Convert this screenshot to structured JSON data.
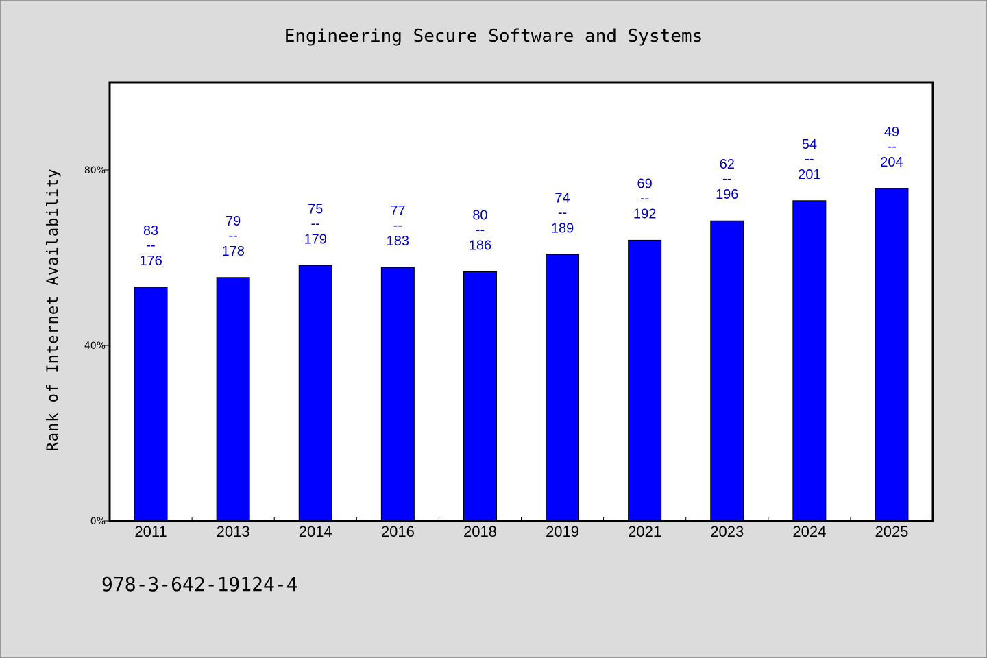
{
  "chart_data": {
    "type": "bar",
    "title": "Engineering Secure Software and Systems",
    "xlabel": "",
    "ylabel": "Rank of Internet Availability",
    "categories": [
      "2011",
      "2013",
      "2014",
      "2016",
      "2018",
      "2019",
      "2021",
      "2023",
      "2024",
      "2025"
    ],
    "values": [
      53.3,
      55.5,
      58.2,
      57.8,
      56.8,
      60.7,
      64.0,
      68.4,
      73.0,
      75.8
    ],
    "labels": [
      {
        "top": "83",
        "sep": "--",
        "bottom": "176"
      },
      {
        "top": "79",
        "sep": "--",
        "bottom": "178"
      },
      {
        "top": "75",
        "sep": "--",
        "bottom": "179"
      },
      {
        "top": "77",
        "sep": "--",
        "bottom": "183"
      },
      {
        "top": "80",
        "sep": "--",
        "bottom": "186"
      },
      {
        "top": "74",
        "sep": "--",
        "bottom": "189"
      },
      {
        "top": "69",
        "sep": "--",
        "bottom": "192"
      },
      {
        "top": "62",
        "sep": "--",
        "bottom": "196"
      },
      {
        "top": "54",
        "sep": "--",
        "bottom": "201"
      },
      {
        "top": "49",
        "sep": "--",
        "bottom": "204"
      }
    ],
    "ylim": [
      0,
      100
    ],
    "yticks": [
      0,
      40,
      80
    ],
    "ytick_labels": [
      "0%",
      "40%",
      "80%"
    ],
    "grid": false,
    "legend": "none",
    "bar_color": "#0000ff",
    "label_color": "#0000cc"
  },
  "footer": {
    "isbn": "978-3-642-19124-4"
  }
}
